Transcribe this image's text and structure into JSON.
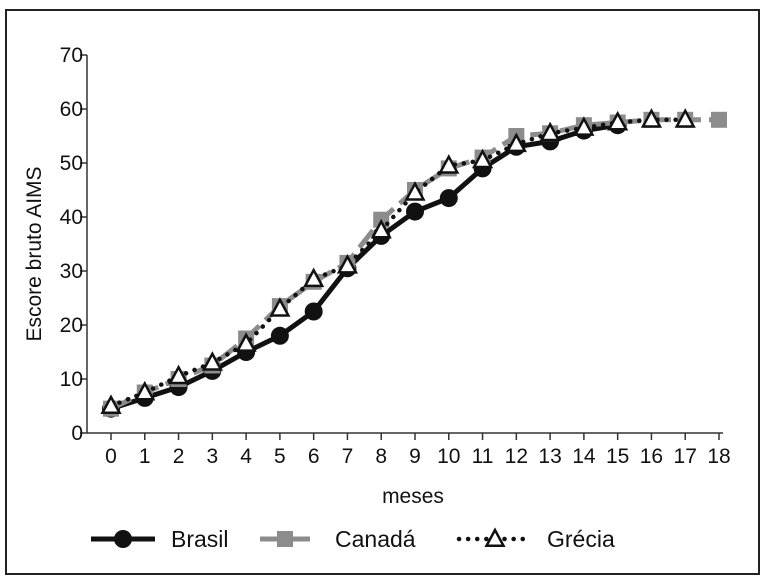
{
  "chart_data": {
    "type": "line",
    "title": "",
    "xlabel": "meses",
    "ylabel": "Escore bruto AIMS",
    "xlim": [
      0,
      18
    ],
    "ylim": [
      0,
      70
    ],
    "x_ticks": [
      0,
      1,
      2,
      3,
      4,
      5,
      6,
      7,
      8,
      9,
      10,
      11,
      12,
      13,
      14,
      15,
      16,
      17,
      18
    ],
    "y_ticks": [
      0,
      10,
      20,
      30,
      40,
      50,
      60,
      70
    ],
    "grid": false,
    "legend_position": "bottom",
    "series": [
      {
        "name": "Brasil",
        "color": "#111111",
        "marker": "circle",
        "line_style": "solid",
        "x": [
          0,
          1,
          2,
          3,
          4,
          5,
          6,
          7,
          8,
          9,
          10,
          11,
          12,
          13,
          14,
          15
        ],
        "values": [
          4.5,
          6.5,
          8.5,
          11.5,
          15,
          18,
          22.5,
          30.5,
          36.5,
          41,
          43.5,
          49,
          53,
          54,
          56,
          57
        ]
      },
      {
        "name": "Canadá",
        "color": "#8c8c8c",
        "marker": "square",
        "line_style": "dashed",
        "x": [
          0,
          1,
          2,
          3,
          4,
          5,
          6,
          7,
          8,
          9,
          10,
          11,
          12,
          13,
          14,
          15,
          16,
          17,
          18
        ],
        "values": [
          4.5,
          7.5,
          10,
          12.5,
          17.5,
          23.5,
          28,
          31.5,
          39.5,
          45,
          49,
          51,
          55,
          55.5,
          57,
          57.5,
          58,
          58,
          58
        ]
      },
      {
        "name": "Grécia",
        "color": "#111111",
        "marker": "triangle",
        "line_style": "dotted",
        "x": [
          0,
          1,
          2,
          3,
          4,
          5,
          6,
          7,
          8,
          9,
          10,
          11,
          12,
          13,
          14,
          15,
          16,
          17
        ],
        "values": [
          5,
          7.5,
          10.5,
          13,
          16.5,
          23,
          28.5,
          31,
          37.5,
          44.5,
          49.5,
          50.5,
          53.5,
          55.5,
          56.5,
          57.5,
          58,
          58
        ]
      }
    ]
  }
}
